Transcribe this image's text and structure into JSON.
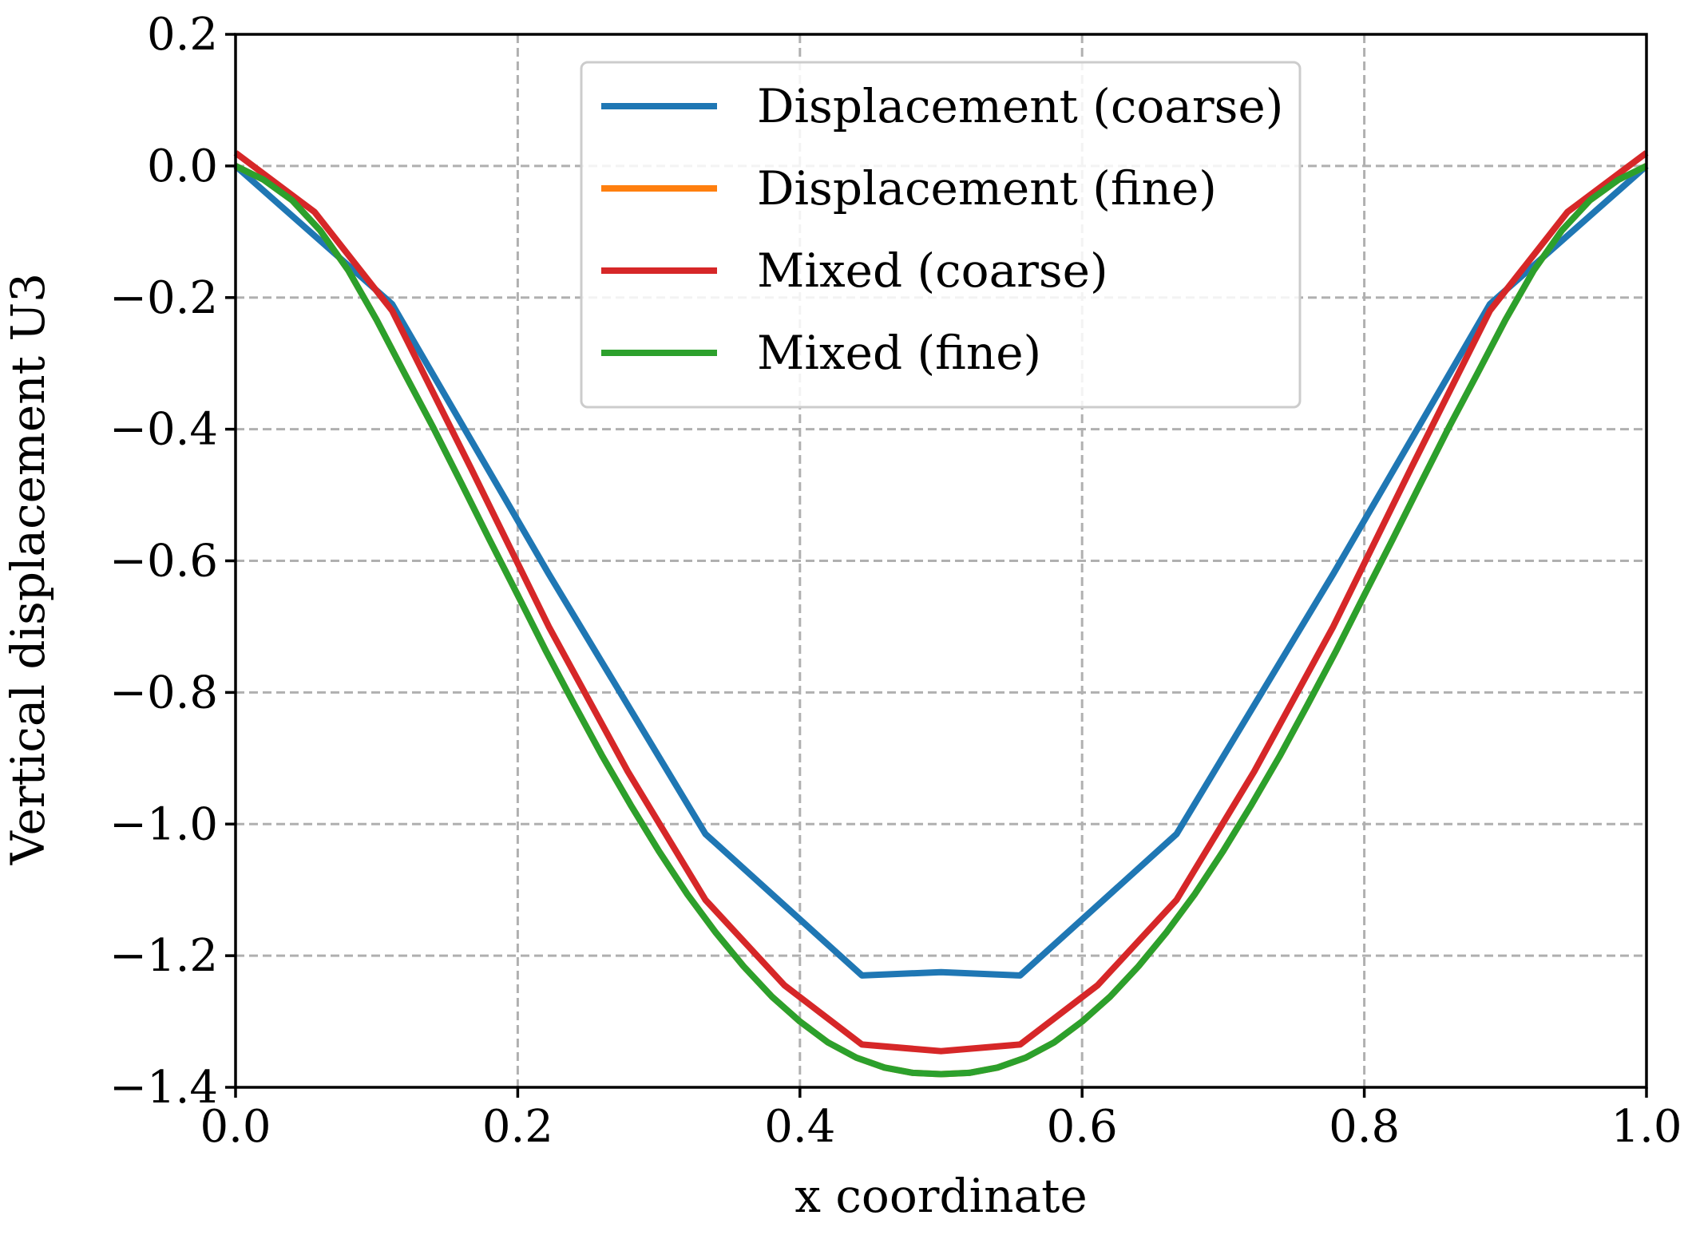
{
  "chart_data": {
    "type": "line",
    "title": "",
    "xlabel": "x coordinate",
    "ylabel": "Vertical displacement U3",
    "xlim": [
      0.0,
      1.0
    ],
    "ylim": [
      -1.4,
      0.2
    ],
    "xticks": [
      0.0,
      0.2,
      0.4,
      0.6,
      0.8,
      1.0
    ],
    "xtick_labels": [
      "0.0",
      "0.2",
      "0.4",
      "0.6",
      "0.8",
      "1.0"
    ],
    "yticks": [
      0.2,
      0.0,
      -0.2,
      -0.4,
      -0.6,
      -0.8,
      -1.0,
      -1.2,
      -1.4
    ],
    "ytick_labels": [
      "0.2",
      "0.0",
      "−0.2",
      "−0.4",
      "−0.6",
      "−0.8",
      "−1.0",
      "−1.2",
      "−1.4"
    ],
    "grid": true,
    "legend_position": "top-center",
    "series": [
      {
        "name": "Displacement (coarse)",
        "color": "#1f77b4",
        "x": [
          0.0,
          0.111,
          0.222,
          0.333,
          0.444,
          0.5,
          0.556,
          0.667,
          0.778,
          0.889,
          1.0
        ],
        "y": [
          0.0,
          -0.21,
          -0.62,
          -1.015,
          -1.23,
          -1.225,
          -1.23,
          -1.015,
          -0.62,
          -0.21,
          0.0
        ]
      },
      {
        "name": "Displacement (fine)",
        "color": "#ff7f0e",
        "x": [
          0.0,
          0.02,
          0.04,
          0.06,
          0.08,
          0.1,
          0.12,
          0.14,
          0.16,
          0.18,
          0.2,
          0.22,
          0.24,
          0.26,
          0.28,
          0.3,
          0.32,
          0.34,
          0.36,
          0.38,
          0.4,
          0.42,
          0.44,
          0.46,
          0.48,
          0.5,
          0.52,
          0.54,
          0.56,
          0.58,
          0.6,
          0.62,
          0.64,
          0.66,
          0.68,
          0.7,
          0.72,
          0.74,
          0.76,
          0.78,
          0.8,
          0.82,
          0.84,
          0.86,
          0.88,
          0.9,
          0.92,
          0.94,
          0.96,
          0.98,
          1.0
        ],
        "y": [
          0.0,
          -0.021,
          -0.052,
          -0.098,
          -0.159,
          -0.234,
          -0.316,
          -0.397,
          -0.482,
          -0.568,
          -0.652,
          -0.737,
          -0.818,
          -0.897,
          -0.971,
          -1.041,
          -1.106,
          -1.164,
          -1.216,
          -1.262,
          -1.3,
          -1.332,
          -1.355,
          -1.37,
          -1.378,
          -1.38,
          -1.378,
          -1.37,
          -1.355,
          -1.332,
          -1.3,
          -1.262,
          -1.216,
          -1.164,
          -1.106,
          -1.041,
          -0.971,
          -0.897,
          -0.818,
          -0.737,
          -0.652,
          -0.568,
          -0.482,
          -0.397,
          -0.316,
          -0.234,
          -0.159,
          -0.098,
          -0.052,
          -0.021,
          0.0
        ]
      },
      {
        "name": "Mixed (coarse)",
        "color": "#d62728",
        "x": [
          0.0,
          0.056,
          0.111,
          0.167,
          0.222,
          0.278,
          0.333,
          0.389,
          0.444,
          0.5,
          0.556,
          0.611,
          0.667,
          0.722,
          0.778,
          0.833,
          0.889,
          0.944,
          1.0
        ],
        "y": [
          0.02,
          -0.07,
          -0.22,
          -0.46,
          -0.7,
          -0.92,
          -1.115,
          -1.245,
          -1.335,
          -1.345,
          -1.335,
          -1.245,
          -1.115,
          -0.92,
          -0.7,
          -0.46,
          -0.22,
          -0.07,
          0.02
        ]
      },
      {
        "name": "Mixed (fine)",
        "color": "#2ca02c",
        "x": [
          0.0,
          0.02,
          0.04,
          0.06,
          0.08,
          0.1,
          0.12,
          0.14,
          0.16,
          0.18,
          0.2,
          0.22,
          0.24,
          0.26,
          0.28,
          0.3,
          0.32,
          0.34,
          0.36,
          0.38,
          0.4,
          0.42,
          0.44,
          0.46,
          0.48,
          0.5,
          0.52,
          0.54,
          0.56,
          0.58,
          0.6,
          0.62,
          0.64,
          0.66,
          0.68,
          0.7,
          0.72,
          0.74,
          0.76,
          0.78,
          0.8,
          0.82,
          0.84,
          0.86,
          0.88,
          0.9,
          0.92,
          0.94,
          0.96,
          0.98,
          1.0
        ],
        "y": [
          0.0,
          -0.021,
          -0.052,
          -0.098,
          -0.159,
          -0.234,
          -0.316,
          -0.397,
          -0.482,
          -0.568,
          -0.652,
          -0.737,
          -0.818,
          -0.897,
          -0.971,
          -1.041,
          -1.106,
          -1.164,
          -1.216,
          -1.262,
          -1.3,
          -1.332,
          -1.355,
          -1.37,
          -1.378,
          -1.38,
          -1.378,
          -1.37,
          -1.355,
          -1.332,
          -1.3,
          -1.262,
          -1.216,
          -1.164,
          -1.106,
          -1.041,
          -0.971,
          -0.897,
          -0.818,
          -0.737,
          -0.652,
          -0.568,
          -0.482,
          -0.397,
          -0.316,
          -0.234,
          -0.159,
          -0.098,
          -0.052,
          -0.021,
          0.0
        ]
      }
    ]
  }
}
